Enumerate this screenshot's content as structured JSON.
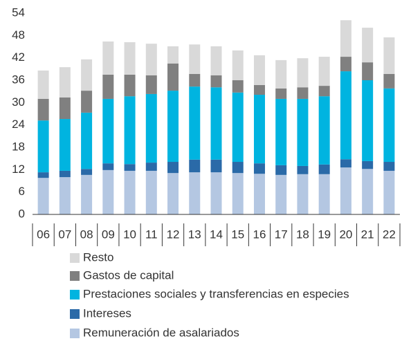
{
  "chart_data": {
    "type": "stacked-bar",
    "categories": [
      "06",
      "07",
      "08",
      "09",
      "10",
      "11",
      "12",
      "13",
      "14",
      "15",
      "16",
      "17",
      "18",
      "19",
      "20",
      "21",
      "22"
    ],
    "series": [
      {
        "name": "Remuneración de asalariados",
        "color": "#b4c7e2",
        "values": [
          9.8,
          10.0,
          10.6,
          11.9,
          11.7,
          11.7,
          11.1,
          11.3,
          11.3,
          11.1,
          10.9,
          10.6,
          10.8,
          10.8,
          12.6,
          12.2,
          11.7
        ]
      },
      {
        "name": "Intereses",
        "color": "#2a6aa8",
        "values": [
          1.5,
          1.7,
          1.6,
          1.8,
          1.8,
          2.2,
          3.0,
          3.4,
          3.4,
          3.0,
          2.8,
          2.6,
          2.2,
          2.6,
          2.2,
          2.1,
          2.4
        ]
      },
      {
        "name": "Prestaciones sociales y transferencias en especies",
        "color": "#00b4e0",
        "values": [
          13.9,
          13.9,
          15.1,
          17.3,
          18.2,
          18.4,
          19.1,
          19.6,
          19.4,
          18.6,
          18.4,
          17.8,
          18.0,
          18.3,
          23.6,
          21.7,
          19.7
        ]
      },
      {
        "name": "Gastos de capital",
        "color": "#808080",
        "values": [
          5.8,
          5.8,
          5.9,
          6.5,
          5.8,
          5.0,
          7.3,
          3.4,
          3.2,
          3.3,
          2.6,
          2.8,
          3.1,
          2.8,
          3.9,
          4.8,
          3.9
        ]
      },
      {
        "name": "Resto",
        "color": "#d9d9d9",
        "values": [
          7.6,
          8.1,
          8.4,
          8.9,
          8.7,
          8.5,
          4.6,
          7.9,
          7.8,
          8.0,
          8.0,
          7.6,
          7.8,
          7.8,
          9.8,
          9.3,
          9.8
        ]
      }
    ],
    "ylim": [
      0,
      54
    ],
    "yticks": [
      0,
      6,
      12,
      18,
      24,
      30,
      36,
      42,
      48,
      54
    ],
    "grid": false
  }
}
